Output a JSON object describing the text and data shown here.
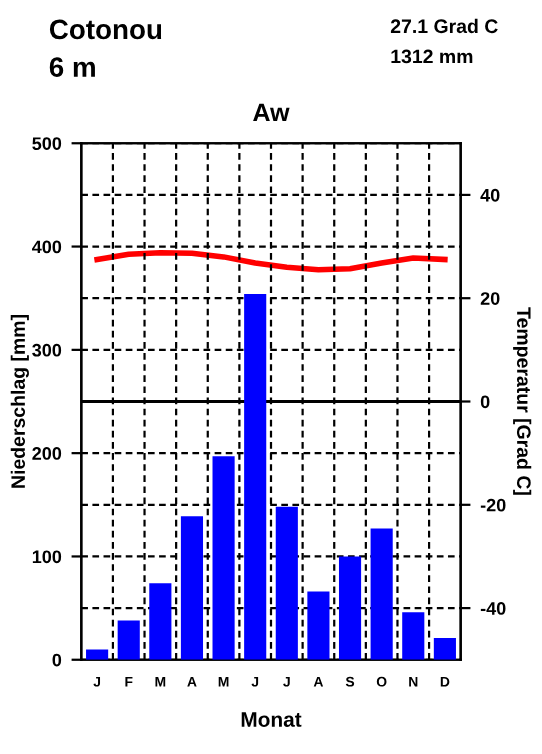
{
  "chart_data": {
    "type": "bar",
    "title": "Aw",
    "xlabel": "Monat",
    "ylabel": "Niederschlag [mm]",
    "y2label": "Temperatur [Grad C]",
    "annotations": [
      "Cotonou",
      "6 m",
      "27.1 Grad C",
      "1312 mm"
    ],
    "categories": [
      "J",
      "F",
      "M",
      "A",
      "M",
      "J",
      "J",
      "A",
      "S",
      "O",
      "N",
      "D"
    ],
    "series": [
      {
        "color": "#0000ff",
        "values": [
          10,
          38,
          74,
          139,
          197,
          354,
          148,
          66,
          100,
          127,
          46,
          21
        ]
      },
      {
        "type": "line",
        "axis": "y2",
        "color": "#ff0000",
        "values": [
          27.5,
          28.5,
          28.8,
          28.7,
          28.0,
          26.8,
          26.0,
          25.5,
          25.7,
          26.8,
          27.8,
          27.5
        ]
      }
    ],
    "ylim": [
      0,
      500
    ],
    "yticks": [
      0,
      100,
      200,
      300,
      400,
      500
    ],
    "y2lim": [
      -50,
      50
    ],
    "y2ticks": [
      -40,
      -20,
      0,
      20,
      40
    ],
    "ref_lines": [
      {
        "axis": "y2",
        "value": 0,
        "color": "#000000",
        "line_style": "solid"
      }
    ],
    "grid": true,
    "marker": "none",
    "line_style": "solid"
  }
}
